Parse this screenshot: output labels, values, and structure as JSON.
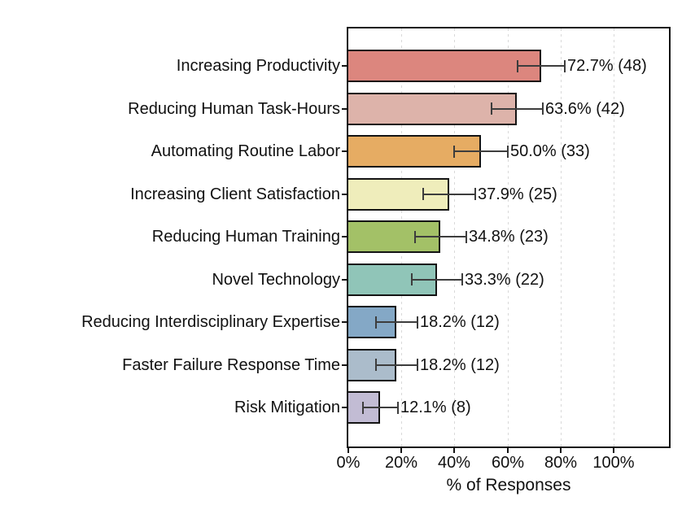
{
  "chart_data": {
    "type": "bar",
    "orientation": "horizontal",
    "title": "",
    "xlabel": "% of Responses",
    "ylabel": "",
    "xlim": [
      0,
      121.5
    ],
    "grid": "vertical dashed gridlines at x ticks, drawn behind bars",
    "legend_position": "none",
    "categories": [
      "Increasing Productivity",
      "Reducing Human Task-Hours",
      "Automating Routine Labor",
      "Increasing Client Satisfaction",
      "Reducing Human Training",
      "Novel Technology",
      "Reducing Interdisciplinary Expertise",
      "Faster Failure Response Time",
      "Risk Mitigation"
    ],
    "values": [
      72.7,
      63.6,
      50.0,
      37.9,
      34.8,
      33.3,
      18.2,
      18.2,
      12.1
    ],
    "counts": [
      48,
      42,
      33,
      25,
      23,
      22,
      12,
      12,
      8
    ],
    "errors": [
      9.0,
      9.7,
      10.1,
      9.8,
      9.6,
      9.5,
      7.8,
      7.8,
      6.6
    ],
    "value_labels": [
      "72.7% (48)",
      "63.6% (42)",
      "50.0% (33)",
      "37.9% (25)",
      "34.8% (23)",
      "33.3% (22)",
      "18.2% (12)",
      "18.2% (12)",
      "12.1% (8)"
    ],
    "bar_colors": [
      "#DC867E",
      "#DDB3AA",
      "#E6AC63",
      "#EFEDBB",
      "#A3C167",
      "#90C5B8",
      "#84A8C6",
      "#ABBCCB",
      "#C2BCD4"
    ],
    "bar_edge_color": "#141414",
    "error_bar_color": "#3d3d3d",
    "x_tick_labels": [
      "0%",
      "20%",
      "40%",
      "60%",
      "80%",
      "100%"
    ],
    "x_tick_values": [
      0,
      20,
      40,
      60,
      80,
      100
    ]
  }
}
